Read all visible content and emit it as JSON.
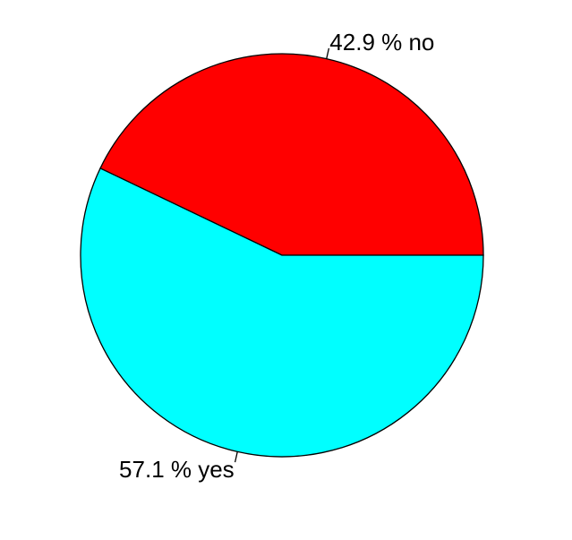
{
  "chart_data": {
    "type": "pie",
    "title": "",
    "slices": [
      {
        "category": "no",
        "value": 42.9,
        "label": "42.9 % no",
        "color": "#ff0000"
      },
      {
        "category": "yes",
        "value": 57.1,
        "label": "57.1 % yes",
        "color": "#00ffff"
      }
    ],
    "start_angle_deg": 0,
    "direction": "counterclockwise",
    "outline_color": "#000000",
    "background": "#ffffff"
  }
}
